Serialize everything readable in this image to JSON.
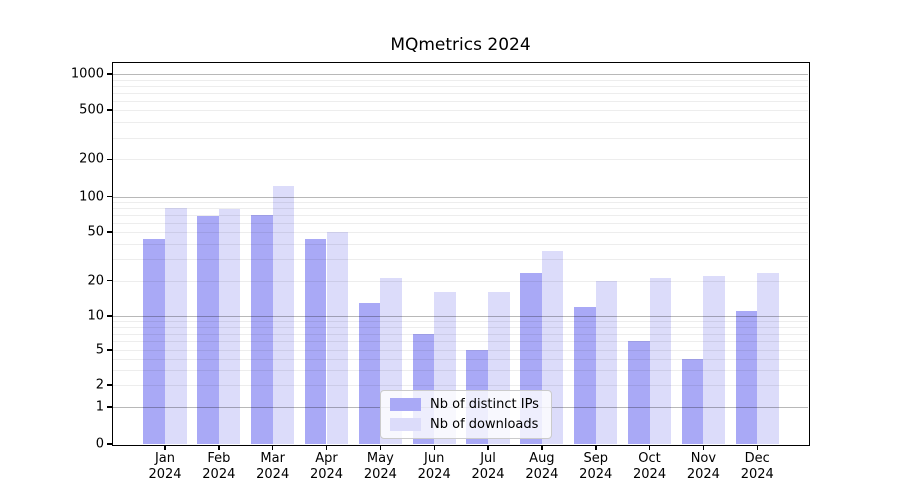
{
  "figure": {
    "title": "MQmetrics 2024"
  },
  "chart_data": {
    "type": "bar",
    "title": "MQmetrics 2024",
    "xlabel": "",
    "ylabel": "",
    "yscale": "symlog",
    "yticks": [
      0,
      1,
      2,
      5,
      10,
      20,
      50,
      100,
      200,
      500,
      1000
    ],
    "ylim": [
      0,
      1200
    ],
    "grid": "on",
    "categories": [
      "Jan 2024",
      "Feb 2024",
      "Mar 2024",
      "Apr 2024",
      "May 2024",
      "Jun 2024",
      "Jul 2024",
      "Aug 2024",
      "Sep 2024",
      "Oct 2024",
      "Nov 2024",
      "Dec 2024"
    ],
    "series": [
      {
        "name": "Nb of distinct IPs",
        "color": "#a9a9f6",
        "values": [
          44,
          68,
          70,
          44,
          13,
          7,
          5,
          23,
          12,
          6,
          4,
          11
        ]
      },
      {
        "name": "Nb of downloads",
        "color": "#dcdcfa",
        "values": [
          80,
          78,
          123,
          50,
          21,
          16,
          16,
          35,
          20,
          21,
          22,
          23
        ]
      }
    ],
    "legend_position": "lower center"
  },
  "colors": {
    "bar_distinct_ips": "#a9a9f6",
    "bar_downloads": "#dcdcfa",
    "grid_major": "#b3b3b3",
    "grid_minor": "#ebebeb",
    "axis": "#000000",
    "background": "#ffffff"
  }
}
